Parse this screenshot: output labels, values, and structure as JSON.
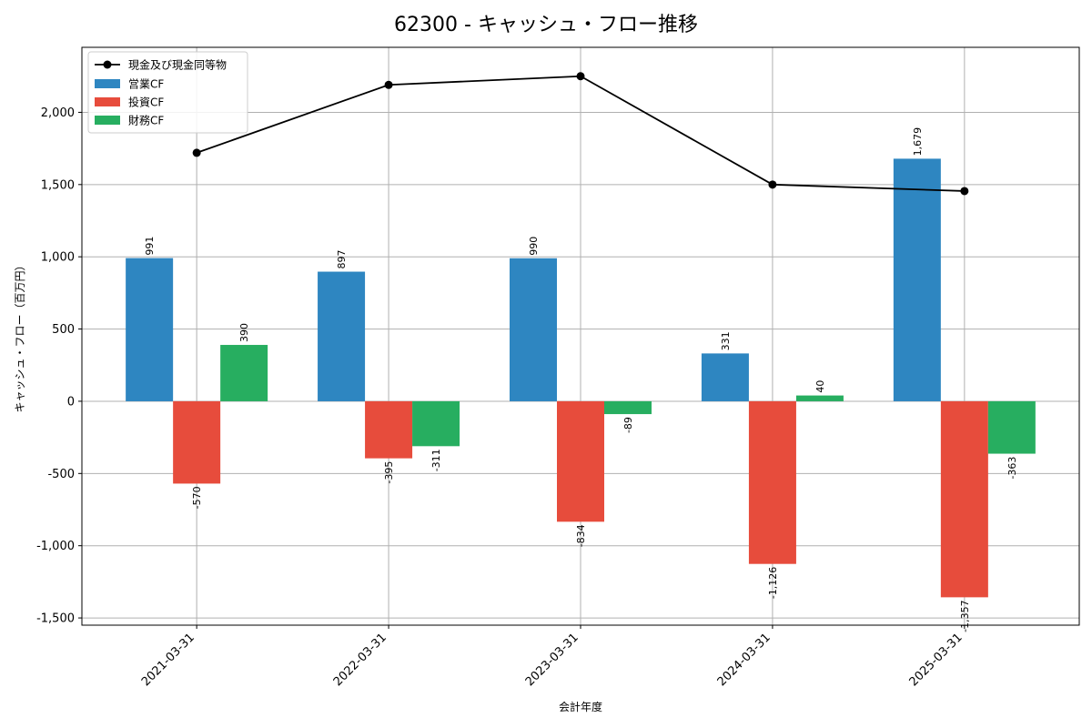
{
  "chart_data": {
    "type": "bar",
    "title": "62300 - キャッシュ・フロー推移",
    "xlabel": "会計年度",
    "ylabel": "キャッシュ・フロー（百万円）",
    "categories": [
      "2021-03-31",
      "2022-03-31",
      "2023-03-31",
      "2024-03-31",
      "2025-03-31"
    ],
    "ylim": [
      -1550,
      2450
    ],
    "yticks": [
      -1500,
      -1000,
      -500,
      0,
      500,
      1000,
      1500,
      2000
    ],
    "ytick_labels": [
      "-1,500",
      "-1,000",
      "-500",
      "0",
      "500",
      "1,000",
      "1,500",
      "2,000"
    ],
    "grid": true,
    "legend_position": "top-left",
    "line": {
      "name": "現金及び現金同等物",
      "values": [
        1720,
        2190,
        2250,
        1500,
        1455
      ],
      "color": "#000000"
    },
    "series": [
      {
        "name": "営業CF",
        "values": [
          991,
          897,
          990,
          331,
          1679
        ],
        "labels": [
          "991",
          "897",
          "990",
          "331",
          "1,679"
        ],
        "color": "#2e86c1"
      },
      {
        "name": "投資CF",
        "values": [
          -570,
          -395,
          -834,
          -1126,
          -1357
        ],
        "labels": [
          "-570",
          "-395",
          "-834",
          "-1,126",
          "-1,357"
        ],
        "color": "#e74c3c"
      },
      {
        "name": "財務CF",
        "values": [
          390,
          -311,
          -89,
          40,
          -363
        ],
        "labels": [
          "390",
          "-311",
          "-89",
          "40",
          "-363"
        ],
        "color": "#27ae60"
      }
    ]
  }
}
